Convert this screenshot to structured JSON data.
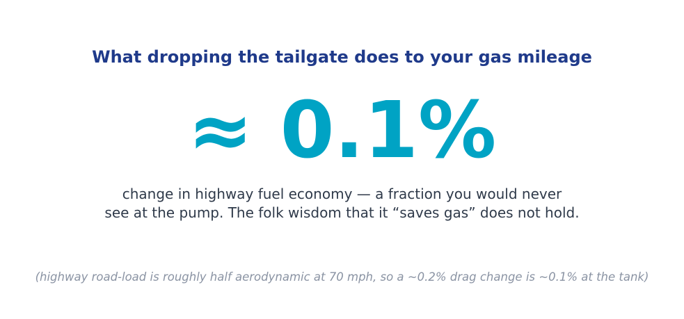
{
  "headline": "What dropping the tailgate does to your gas mileage",
  "stat": "≈ 0.1%",
  "body": {
    "line1": "change in highway fuel economy — a fraction you would never",
    "line2": "see at the pump. The folk wisdom that it “saves gas” does not hold."
  },
  "footnote": "(highway road-load is roughly half aerodynamic at 70 mph, so a ~0.2% drag change is ~0.1% at the tank)",
  "colors": {
    "headline": "#1f3a8a",
    "stat": "#00a3c4",
    "body": "#2f3a4a",
    "footnote": "#8a93a3",
    "background": "#ffffff"
  }
}
